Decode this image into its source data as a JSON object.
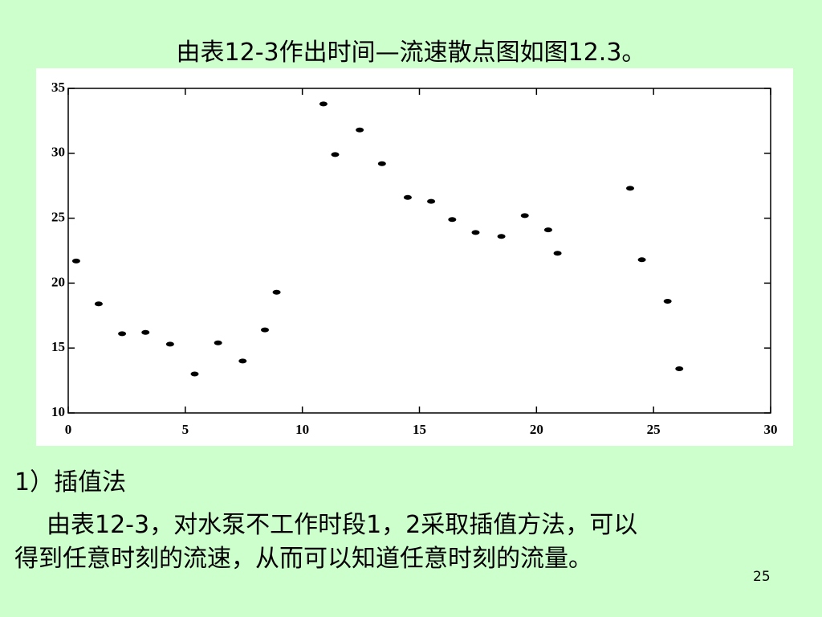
{
  "title": "由表12-3作出时间—流速散点图如图12.3。",
  "chart_data": {
    "type": "scatter",
    "x": [
      0.34,
      1.3,
      2.3,
      3.3,
      4.35,
      5.4,
      6.4,
      7.45,
      8.4,
      8.9,
      10.9,
      11.4,
      12.45,
      13.4,
      14.5,
      15.5,
      16.4,
      17.4,
      18.5,
      19.5,
      20.5,
      20.9,
      24.0,
      24.5,
      25.6,
      26.1
    ],
    "values": [
      21.7,
      18.4,
      16.1,
      16.2,
      15.3,
      13.0,
      15.4,
      14.0,
      16.4,
      19.3,
      33.8,
      29.9,
      31.8,
      29.2,
      26.6,
      26.3,
      24.9,
      23.9,
      23.6,
      25.2,
      24.1,
      22.3,
      27.3,
      21.8,
      18.6,
      13.4
    ],
    "color": "#000000",
    "xlim": [
      0,
      30
    ],
    "xticks": [
      0,
      5,
      10,
      15,
      20,
      25,
      30
    ],
    "ylim": [
      10,
      35
    ],
    "yticks": [
      10,
      15,
      20,
      25,
      30,
      35
    ],
    "grid": false
  },
  "body": {
    "heading": "1）插值法",
    "lines": [
      "由表12-3，对水泵不工作时段1，2采取插值方法，可以",
      "得到任意时刻的流速，从而可以知道任意时刻的流量。"
    ]
  },
  "page_number": "25"
}
